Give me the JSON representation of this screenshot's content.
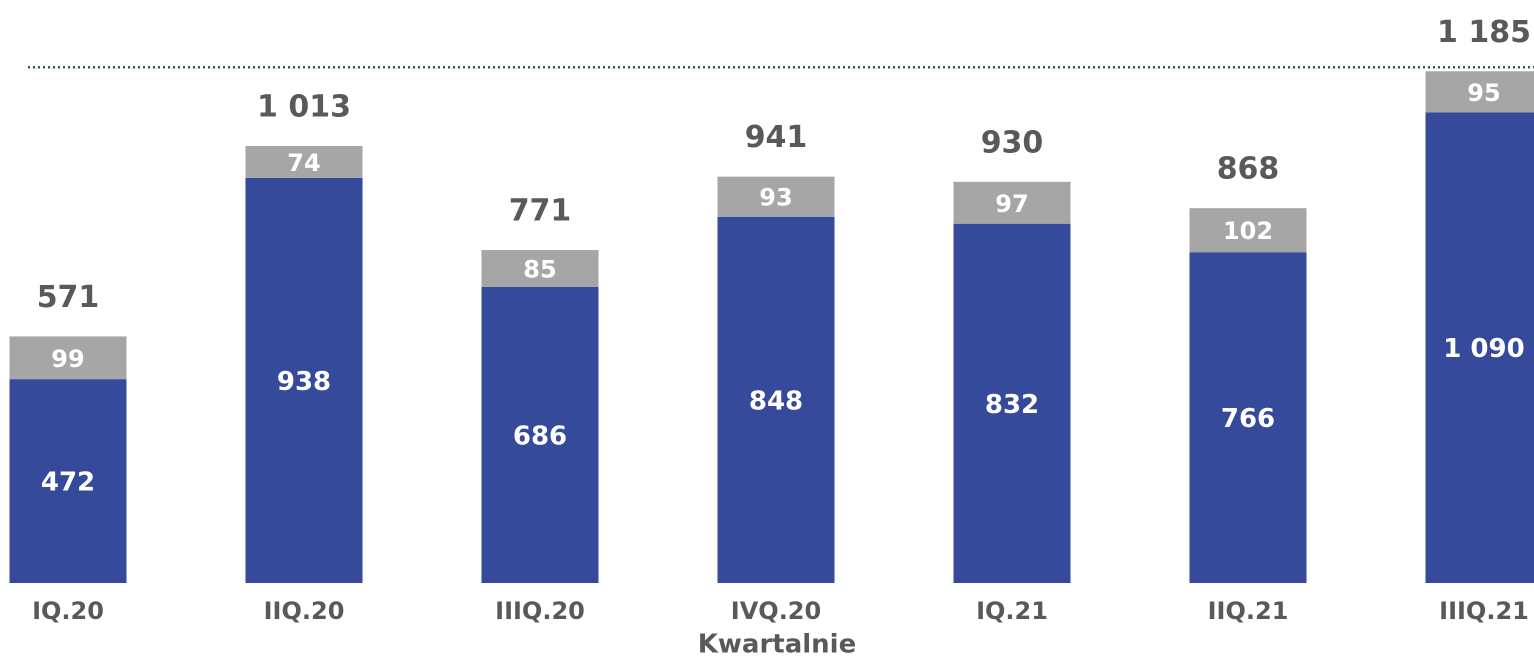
{
  "chart_data": {
    "type": "bar",
    "stacked": true,
    "x_label": "Kwartalnie",
    "categories": [
      "IQ.20",
      "IIQ.20",
      "IIIQ.20",
      "IVQ.20",
      "IQ.21",
      "IIQ.21",
      "IIIQ.21"
    ],
    "series": [
      {
        "color": "#354a9a",
        "values": [
          472,
          938,
          686,
          848,
          832,
          766,
          1090
        ],
        "value_labels": [
          "472",
          "938",
          "686",
          "848",
          "832",
          "766",
          "1 090"
        ]
      },
      {
        "color": "#a6a6a6",
        "values": [
          99,
          74,
          85,
          93,
          97,
          102,
          95
        ]
      }
    ],
    "totals": {
      "values": [
        571,
        1013,
        771,
        941,
        930,
        868,
        1185
      ],
      "value_labels": [
        "571",
        "1 013",
        "771",
        "941",
        "930",
        "868",
        "1 185"
      ]
    },
    "reference_line_color": "#1e6b3c",
    "ylim": [
      0,
      1350
    ]
  }
}
